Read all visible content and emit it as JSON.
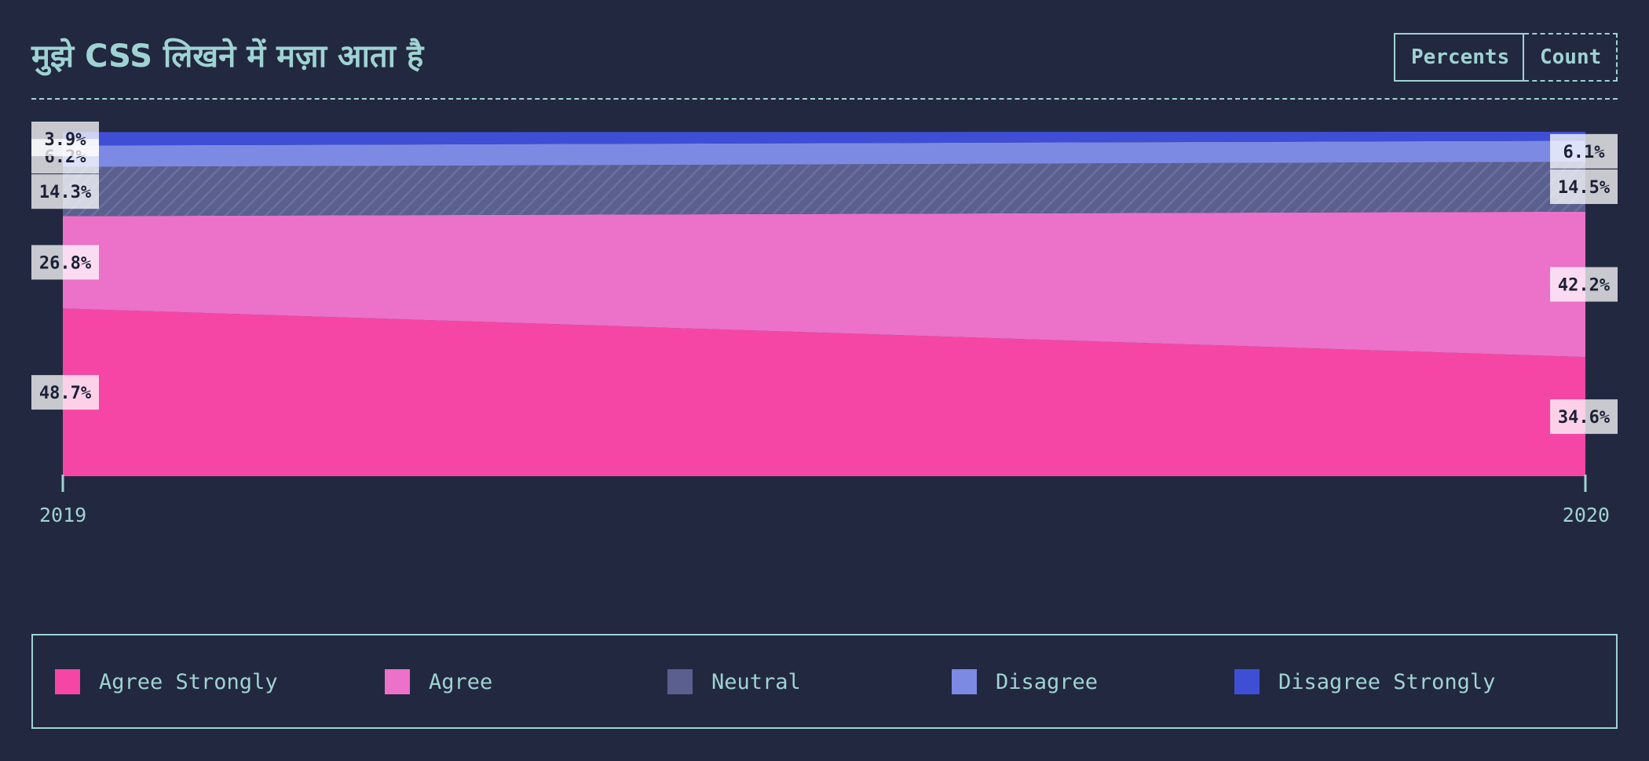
{
  "header": {
    "title": "मुझे CSS लिखने में मज़ा आता है",
    "toggle": {
      "percents_label": "Percents",
      "count_label": "Count",
      "active": "Percents"
    }
  },
  "chart_data": {
    "type": "area",
    "stacking": "percent",
    "title": "मुझे CSS लिखने में मज़ा आता है",
    "x": [
      "2019",
      "2020"
    ],
    "ylim": [
      0,
      100
    ],
    "series": [
      {
        "name": "Agree Strongly",
        "key": "agree-strongly",
        "color": "#f546a6",
        "values": [
          48.7,
          34.6
        ],
        "labels": [
          "48.7%",
          "34.6%"
        ]
      },
      {
        "name": "Agree",
        "key": "agree",
        "color": "#ec71c8",
        "values": [
          26.8,
          42.2
        ],
        "labels": [
          "26.8%",
          "42.2%"
        ]
      },
      {
        "name": "Neutral",
        "key": "neutral",
        "color": "#5a5f8d",
        "hatched": true,
        "values": [
          14.3,
          14.5
        ],
        "labels": [
          "14.3%",
          "14.5%"
        ]
      },
      {
        "name": "Disagree",
        "key": "disagree",
        "color": "#7d8ae3",
        "values": [
          6.2,
          6.1
        ],
        "labels": [
          "6.2%",
          "6.1%"
        ]
      },
      {
        "name": "Disagree Strongly",
        "key": "disagree-strongly",
        "color": "#3e4fd6",
        "values": [
          3.9,
          2.6
        ],
        "labels": [
          "3.9%",
          ""
        ]
      }
    ],
    "legend": "bottom"
  },
  "legend": {
    "items": [
      {
        "label": "Agree Strongly",
        "color": "#f546a6"
      },
      {
        "label": "Agree",
        "color": "#ec71c8"
      },
      {
        "label": "Neutral",
        "color": "#5a5f8d"
      },
      {
        "label": "Disagree",
        "color": "#7d8ae3"
      },
      {
        "label": "Disagree Strongly",
        "color": "#3e4fd6"
      }
    ]
  }
}
